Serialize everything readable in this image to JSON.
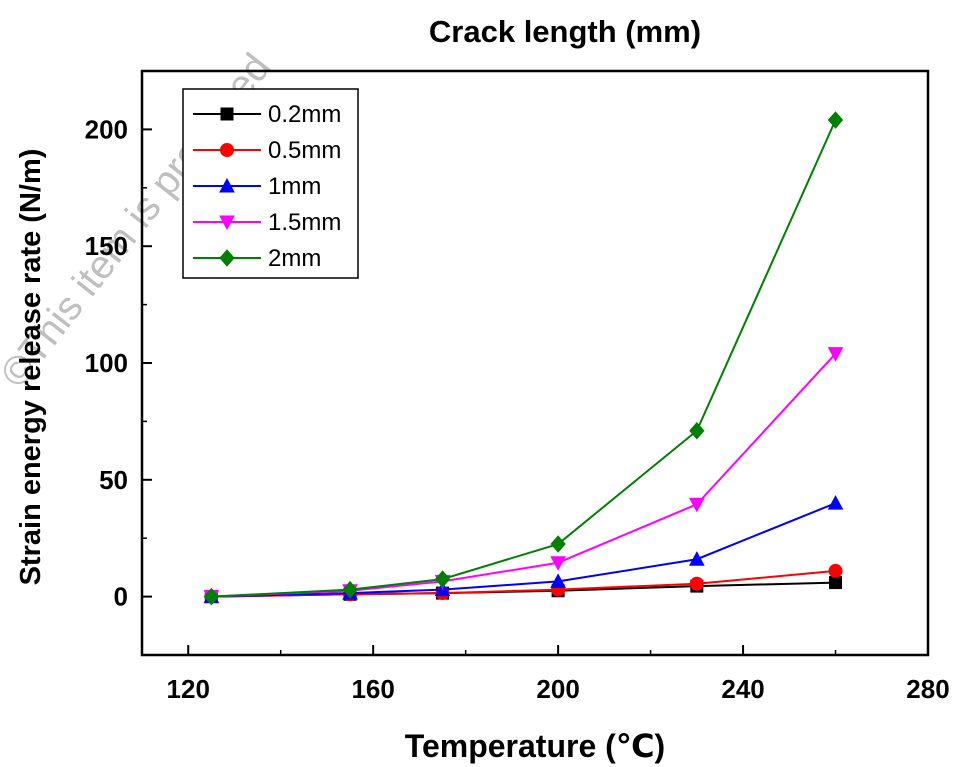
{
  "watermark": "©This item is protected",
  "chart_data": {
    "type": "line",
    "title": "Crack length (mm)",
    "xlabel": "Temperature (℃)",
    "ylabel": "Strain energy release rate (N/m)",
    "xlim": [
      110,
      280
    ],
    "ylim": [
      -25,
      225
    ],
    "xticks": [
      120,
      160,
      200,
      240,
      280
    ],
    "yticks": [
      0,
      50,
      100,
      150,
      200
    ],
    "grid": false,
    "legend_position": "top-left",
    "x": [
      125,
      155,
      175,
      200,
      230,
      260
    ],
    "series": [
      {
        "name": "0.2mm",
        "color": "#000000",
        "marker": "square",
        "values": [
          0,
          1,
          1.5,
          2.5,
          4.5,
          6
        ]
      },
      {
        "name": "0.5mm",
        "color": "#ff0000",
        "marker": "circle",
        "values": [
          0,
          1,
          1.5,
          3,
          5.5,
          11
        ]
      },
      {
        "name": "1mm",
        "color": "#0000ff",
        "marker": "triangle-up",
        "values": [
          0,
          1.5,
          3,
          6.5,
          16,
          40
        ]
      },
      {
        "name": "1.5mm",
        "color": "#ff00ff",
        "marker": "triangle-down",
        "values": [
          0,
          2.5,
          6.5,
          14.5,
          39.5,
          104
        ]
      },
      {
        "name": "2mm",
        "color": "#008000",
        "marker": "diamond",
        "values": [
          0,
          3,
          7.5,
          22.5,
          71,
          204
        ]
      }
    ]
  }
}
